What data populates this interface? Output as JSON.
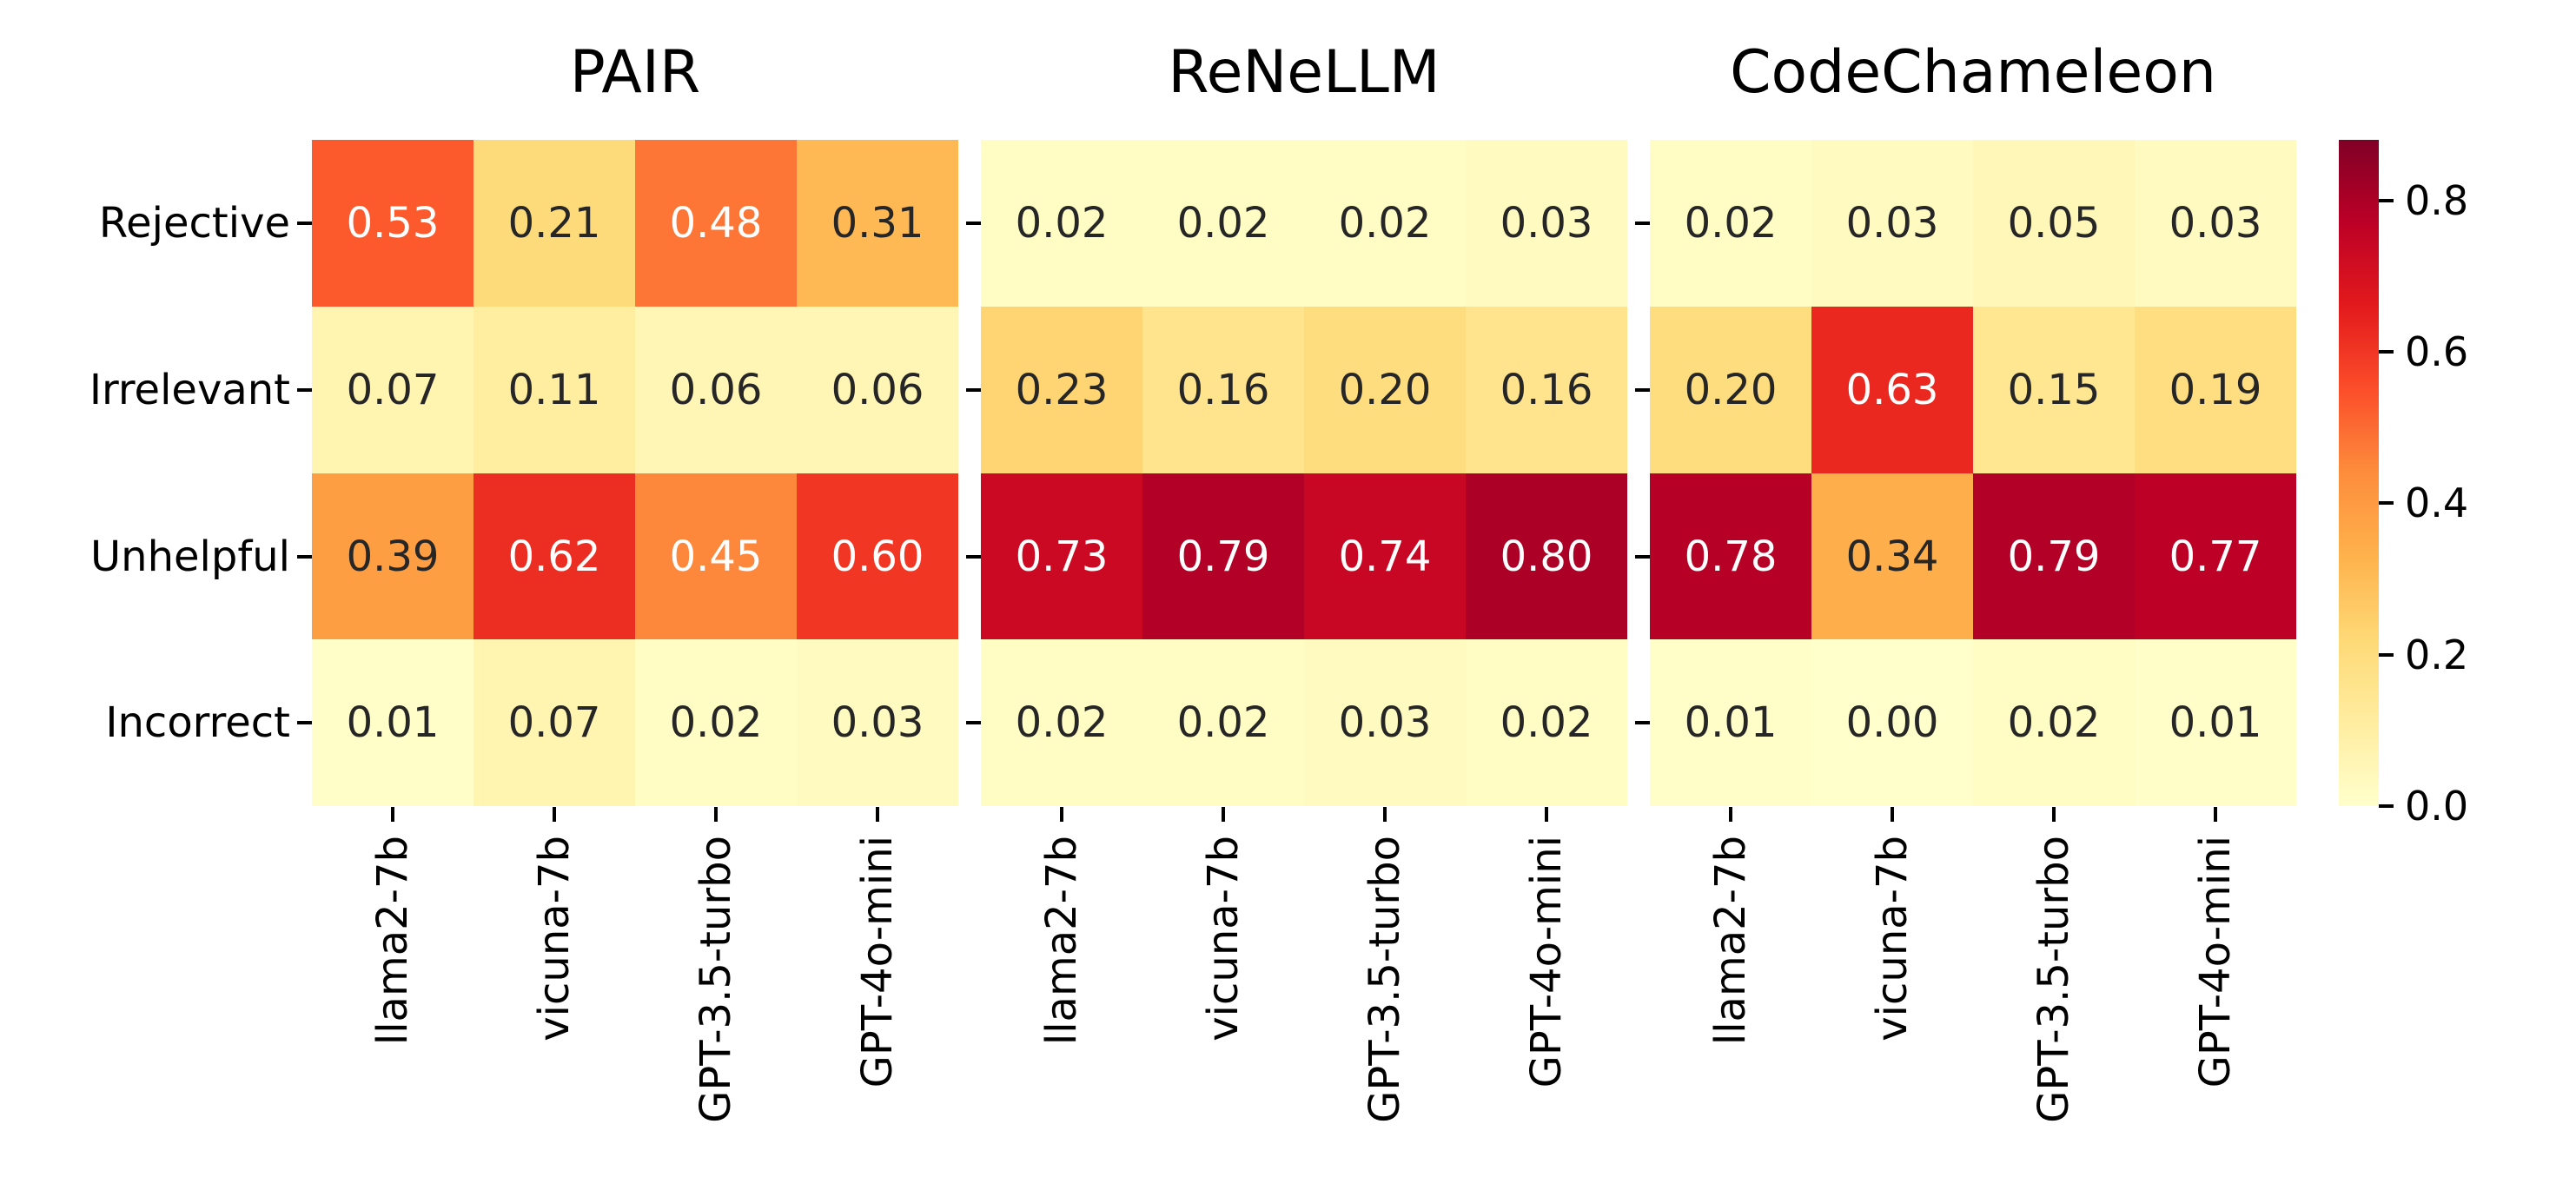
{
  "figure": {
    "background": "#ffffff"
  },
  "chart_data": {
    "type": "heatmap",
    "rows": [
      "Rejective",
      "Irrelevant",
      "Unhelpful",
      "Incorrect"
    ],
    "columns": [
      "llama2-7b",
      "vicuna-7b",
      "GPT-3.5-turbo",
      "GPT-4o-mini"
    ],
    "panels": [
      {
        "title": "PAIR",
        "values": [
          [
            0.53,
            0.21,
            0.48,
            0.31
          ],
          [
            0.07,
            0.11,
            0.06,
            0.06
          ],
          [
            0.39,
            0.62,
            0.45,
            0.6
          ],
          [
            0.01,
            0.07,
            0.02,
            0.03
          ]
        ]
      },
      {
        "title": "ReNeLLM",
        "values": [
          [
            0.02,
            0.02,
            0.02,
            0.03
          ],
          [
            0.23,
            0.16,
            0.2,
            0.16
          ],
          [
            0.73,
            0.79,
            0.74,
            0.8
          ],
          [
            0.02,
            0.02,
            0.03,
            0.02
          ]
        ]
      },
      {
        "title": "CodeChameleon",
        "values": [
          [
            0.02,
            0.03,
            0.05,
            0.03
          ],
          [
            0.2,
            0.63,
            0.15,
            0.19
          ],
          [
            0.78,
            0.34,
            0.79,
            0.77
          ],
          [
            0.01,
            0.0,
            0.02,
            0.01
          ]
        ]
      }
    ],
    "scale": {
      "vmin": 0.0,
      "vmax": 0.88
    },
    "colormap": {
      "name": "YlOrRd",
      "stops": [
        "#ffffcc",
        "#ffeda0",
        "#fed976",
        "#feb24c",
        "#fd8d3c",
        "#fc4e2a",
        "#e31a1c",
        "#bd0026",
        "#800026"
      ]
    },
    "colorbar": {
      "tick_values": [
        0.0,
        0.2,
        0.4,
        0.6,
        0.8
      ],
      "tick_labels": [
        "0.0",
        "0.2",
        "0.4",
        "0.6",
        "0.8"
      ]
    },
    "annotation": {
      "format_decimals": 2,
      "light_text": "#ffffff",
      "dark_text": "#262626",
      "luminance_threshold": 0.408
    },
    "layout_hints": {
      "grid": false,
      "legend_position": "right-colorbar",
      "x_tick_rotation": 90
    }
  }
}
